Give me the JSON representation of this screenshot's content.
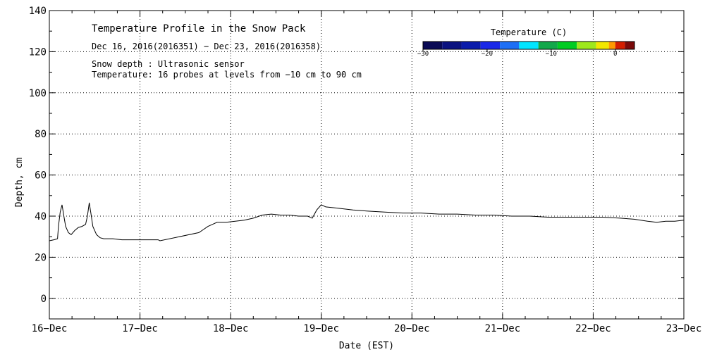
{
  "chart_data": {
    "type": "line",
    "title": "Temperature Profile in the Snow Pack",
    "subtitle": "Dec 16, 2016(2016351) − Dec 23, 2016(2016358)",
    "annotations": [
      "Snow depth : Ultrasonic sensor",
      "Temperature: 16 probes at levels from −10 cm to 90 cm"
    ],
    "xlabel": "Date (EST)",
    "ylabel": "Depth, cm",
    "xlim": [
      0,
      7
    ],
    "ylim": [
      -10,
      140
    ],
    "x_ticks": [
      {
        "value": 0,
        "label": "16−Dec"
      },
      {
        "value": 1,
        "label": "17−Dec"
      },
      {
        "value": 2,
        "label": "18−Dec"
      },
      {
        "value": 3,
        "label": "19−Dec"
      },
      {
        "value": 4,
        "label": "20−Dec"
      },
      {
        "value": 5,
        "label": "21−Dec"
      },
      {
        "value": 6,
        "label": "22−Dec"
      },
      {
        "value": 7,
        "label": "23−Dec"
      }
    ],
    "y_ticks": [
      0,
      20,
      40,
      60,
      80,
      100,
      120,
      140
    ],
    "grid": true,
    "series": [
      {
        "name": "Snow depth",
        "color": "#000000",
        "points": [
          [
            0.0,
            28
          ],
          [
            0.05,
            28.5
          ],
          [
            0.09,
            29
          ],
          [
            0.1,
            35
          ],
          [
            0.12,
            42
          ],
          [
            0.14,
            45.5
          ],
          [
            0.16,
            40
          ],
          [
            0.18,
            35
          ],
          [
            0.21,
            32
          ],
          [
            0.24,
            31
          ],
          [
            0.28,
            33
          ],
          [
            0.32,
            34.5
          ],
          [
            0.36,
            35
          ],
          [
            0.4,
            36
          ],
          [
            0.42,
            40
          ],
          [
            0.44,
            46.5
          ],
          [
            0.46,
            41
          ],
          [
            0.48,
            35
          ],
          [
            0.52,
            31
          ],
          [
            0.56,
            29.5
          ],
          [
            0.6,
            29
          ],
          [
            0.7,
            29
          ],
          [
            0.8,
            28.5
          ],
          [
            0.9,
            28.5
          ],
          [
            1.0,
            28.5
          ],
          [
            1.1,
            28.5
          ],
          [
            1.2,
            28.5
          ],
          [
            1.22,
            28
          ],
          [
            1.65,
            32
          ],
          [
            1.7,
            33.5
          ],
          [
            1.75,
            35
          ],
          [
            1.8,
            36
          ],
          [
            1.85,
            37
          ],
          [
            1.95,
            37
          ],
          [
            2.05,
            37.5
          ],
          [
            2.15,
            38
          ],
          [
            2.25,
            39
          ],
          [
            2.35,
            40.5
          ],
          [
            2.45,
            41
          ],
          [
            2.55,
            40.5
          ],
          [
            2.65,
            40.5
          ],
          [
            2.75,
            40
          ],
          [
            2.85,
            40
          ],
          [
            2.9,
            39
          ],
          [
            2.95,
            43
          ],
          [
            3.0,
            45.5
          ],
          [
            3.05,
            44.5
          ],
          [
            3.15,
            44
          ],
          [
            3.25,
            43.5
          ],
          [
            3.35,
            43
          ],
          [
            3.5,
            42.5
          ],
          [
            3.7,
            42
          ],
          [
            3.9,
            41.5
          ],
          [
            4.1,
            41.5
          ],
          [
            4.3,
            41
          ],
          [
            4.5,
            41
          ],
          [
            4.7,
            40.5
          ],
          [
            4.9,
            40.5
          ],
          [
            5.1,
            40
          ],
          [
            5.3,
            40
          ],
          [
            5.5,
            39.5
          ],
          [
            5.7,
            39.5
          ],
          [
            5.9,
            39.5
          ],
          [
            6.1,
            39.5
          ],
          [
            6.3,
            39
          ],
          [
            6.45,
            38.5
          ],
          [
            6.6,
            37.5
          ],
          [
            6.7,
            37
          ],
          [
            6.8,
            37.5
          ],
          [
            6.9,
            37.5
          ],
          [
            7.0,
            38
          ]
        ]
      }
    ],
    "colorbar": {
      "title": "Temperature (C)",
      "range": [
        -30,
        3
      ],
      "ticks": [
        {
          "value": -30,
          "label": "−30"
        },
        {
          "value": -20,
          "label": "−20"
        },
        {
          "value": -10,
          "label": "−10"
        },
        {
          "value": 0,
          "label": "0"
        }
      ],
      "bins": [
        {
          "from": -30,
          "to": -27,
          "color": "#0a0a55"
        },
        {
          "from": -27,
          "to": -24,
          "color": "#0b1280"
        },
        {
          "from": -24,
          "to": -21,
          "color": "#0a1bab"
        },
        {
          "from": -21,
          "to": -18,
          "color": "#1a28e8"
        },
        {
          "from": -18,
          "to": -15,
          "color": "#1d6ff5"
        },
        {
          "from": -15,
          "to": -12,
          "color": "#00e5ff"
        },
        {
          "from": -12,
          "to": -9,
          "color": "#12a84a"
        },
        {
          "from": -9,
          "to": -6,
          "color": "#00cc22"
        },
        {
          "from": -6,
          "to": -3,
          "color": "#9ee81c"
        },
        {
          "from": -3,
          "to": -1,
          "color": "#f2e700"
        },
        {
          "from": -1,
          "to": 0,
          "color": "#ff9a00"
        },
        {
          "from": 0,
          "to": 1.5,
          "color": "#d41e00"
        },
        {
          "from": 1.5,
          "to": 3,
          "color": "#7a0a0a"
        }
      ]
    }
  }
}
